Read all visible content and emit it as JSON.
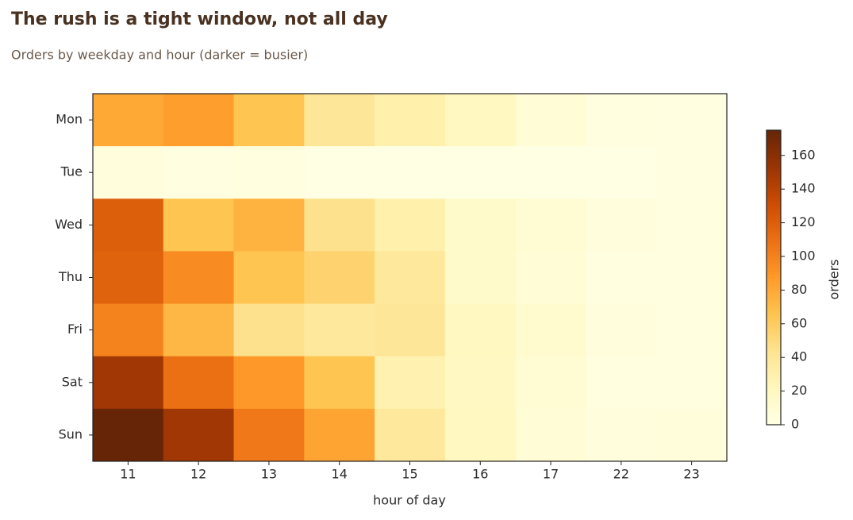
{
  "chart_data": {
    "type": "heatmap",
    "title": "The rush is a tight window, not all day",
    "subtitle": "Orders by weekday and hour (darker = busier)",
    "x_label": "hour of day",
    "x_categories": [
      "11",
      "12",
      "13",
      "14",
      "15",
      "16",
      "17",
      "22",
      "23"
    ],
    "y_categories": [
      "Mon",
      "Tue",
      "Wed",
      "Thu",
      "Fri",
      "Sat",
      "Sun"
    ],
    "values": [
      [
        80,
        85,
        65,
        40,
        30,
        20,
        8,
        3,
        2
      ],
      [
        5,
        2,
        4,
        1,
        1,
        1,
        1,
        1,
        2
      ],
      [
        120,
        65,
        75,
        45,
        30,
        15,
        10,
        5,
        3
      ],
      [
        118,
        95,
        65,
        55,
        38,
        15,
        8,
        4,
        3
      ],
      [
        100,
        72,
        45,
        38,
        40,
        20,
        12,
        5,
        3
      ],
      [
        150,
        110,
        88,
        65,
        28,
        18,
        10,
        4,
        3
      ],
      [
        175,
        150,
        105,
        82,
        38,
        20,
        8,
        5,
        6
      ]
    ],
    "colormap": "YlOrBr",
    "zlim": [
      0,
      175
    ],
    "colorbar_ticks": [
      0,
      20,
      40,
      60,
      80,
      100,
      120,
      140,
      160
    ],
    "colorbar_label": "orders"
  }
}
